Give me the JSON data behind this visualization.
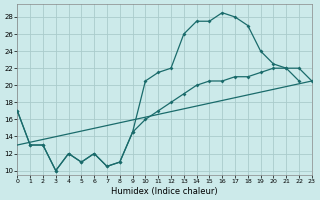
{
  "xlabel": "Humidex (Indice chaleur)",
  "bg_color": "#cceaea",
  "grid_color": "#aacccc",
  "line_color": "#1a6b6b",
  "xlim": [
    0,
    23
  ],
  "ylim": [
    9.5,
    29.5
  ],
  "yticks": [
    10,
    12,
    14,
    16,
    18,
    20,
    22,
    24,
    26,
    28
  ],
  "xticks": [
    0,
    1,
    2,
    3,
    4,
    5,
    6,
    7,
    8,
    9,
    10,
    11,
    12,
    13,
    14,
    15,
    16,
    17,
    18,
    19,
    20,
    21,
    22,
    23
  ],
  "curve1_x": [
    0,
    1,
    2,
    3,
    4,
    5,
    6,
    7,
    8,
    9,
    10,
    11,
    12,
    13,
    14,
    15,
    16,
    17,
    18,
    19,
    20,
    21,
    22
  ],
  "curve1_y": [
    17,
    13,
    13,
    10,
    12,
    11,
    12,
    10.5,
    11,
    14.5,
    20.5,
    21.5,
    22,
    26,
    27.5,
    27.5,
    28.5,
    28,
    27,
    24,
    22.5,
    22,
    20.5
  ],
  "curve2_x": [
    0,
    1,
    2,
    3,
    4,
    5,
    6,
    7,
    8,
    9,
    10,
    11,
    12,
    13,
    14,
    15,
    16,
    17,
    18,
    19,
    20,
    21,
    22,
    23
  ],
  "curve2_y": [
    17,
    13,
    13,
    10,
    12,
    11,
    12,
    10.5,
    11,
    14.5,
    16,
    17,
    18,
    19,
    20,
    20.5,
    20.5,
    21,
    21,
    21.5,
    22,
    22,
    22,
    20.5
  ],
  "line3_x": [
    0,
    23
  ],
  "line3_y": [
    13,
    20.5
  ]
}
